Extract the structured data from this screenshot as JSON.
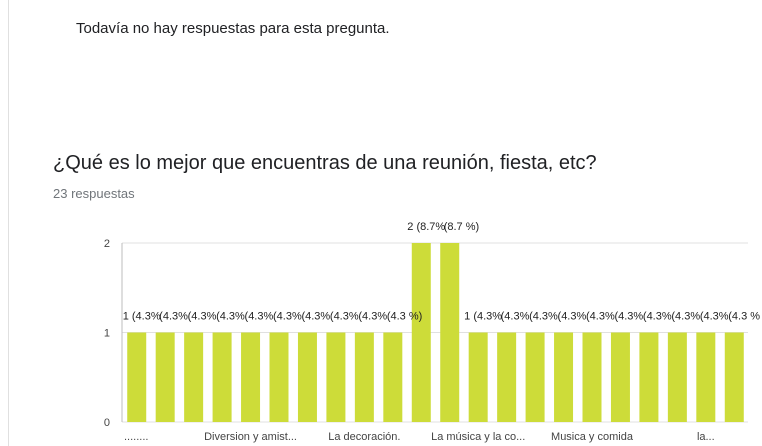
{
  "previous_question": {
    "no_answers_text": "Todavía no hay respuestas para esta pregunta."
  },
  "question": {
    "title": "¿Qué es lo mejor que encuentras de una reunión, fiesta, etc?",
    "responses_text": "23 respuestas"
  },
  "colors": {
    "bar": "#cddc39",
    "grid": "#e0e0e0",
    "axis_text": "#444444"
  },
  "chart_data": {
    "type": "bar",
    "title": "",
    "xlabel": "",
    "ylabel": "",
    "ylim": [
      0,
      2
    ],
    "yticks": [
      "0",
      "1",
      "2"
    ],
    "grid": true,
    "values": [
      1,
      1,
      1,
      1,
      1,
      1,
      1,
      1,
      1,
      1,
      2,
      2,
      1,
      1,
      1,
      1,
      1,
      1,
      1,
      1,
      1,
      1
    ],
    "data_labels": [
      "1 (4.3%)",
      "1 (4.3%)",
      "1 (4.3%)",
      "1 (4.3%)",
      "1 (4.3%)",
      "1 (4.3%)",
      "1 (4.3%)",
      "1 (4.3%)",
      "1 (4.3%)",
      "1 (4.3 %)",
      "2 (8.7%)",
      "2 (8.7 %)",
      "1 (4.3%)",
      "1 (4.3%)",
      "1 (4.3%)",
      "1 (4.3%)",
      "1 (4.3%)",
      "1 (4.3%)",
      "1 (4.3%)",
      "1 (4.3%)",
      "1 (4.3%)",
      "1 (4.3 %)"
    ],
    "data_labels_visible": [
      "1 (4.3%",
      "(4.3%",
      "(4.3%",
      "(4.3%",
      "(4.3%",
      "(4.3%",
      "(4.3%",
      "(4.3%",
      "(4.3%",
      "(4.3 %)",
      "2 (8.7%",
      "(8.7 %)",
      "1 (4.3%",
      "(4.3%",
      "(4.3%",
      "(4.3%",
      "(4.3%",
      "(4.3%",
      "(4.3%",
      "(4.3%",
      "(4.3%",
      "(4.3 %"
    ],
    "x_tick_labels": [
      "........",
      "Diversion y amist...",
      "La decoración.",
      "La música y la co...",
      "Musica y comida",
      "la..."
    ]
  }
}
